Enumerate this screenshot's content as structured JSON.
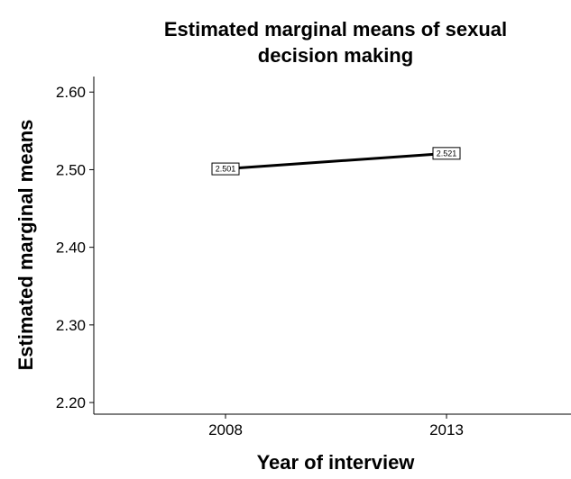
{
  "chart_data": {
    "type": "line",
    "title_lines": [
      "Estimated marginal means of sexual",
      "decision making"
    ],
    "xlabel": "Year of interview",
    "ylabel": "Estimated marginal means",
    "categories": [
      "2008",
      "2013"
    ],
    "series": [
      {
        "values": [
          2.501,
          2.521
        ],
        "data_labels": [
          "2.501",
          "2.521"
        ],
        "color": "#000000"
      }
    ],
    "yticks": [
      2.2,
      2.3,
      2.4,
      2.5,
      2.6
    ],
    "ytick_labels": [
      "2.20",
      "2.30",
      "2.40",
      "2.50",
      "2.60"
    ],
    "ylim": [
      2.185,
      2.62
    ],
    "grid": false,
    "legend": "none"
  }
}
